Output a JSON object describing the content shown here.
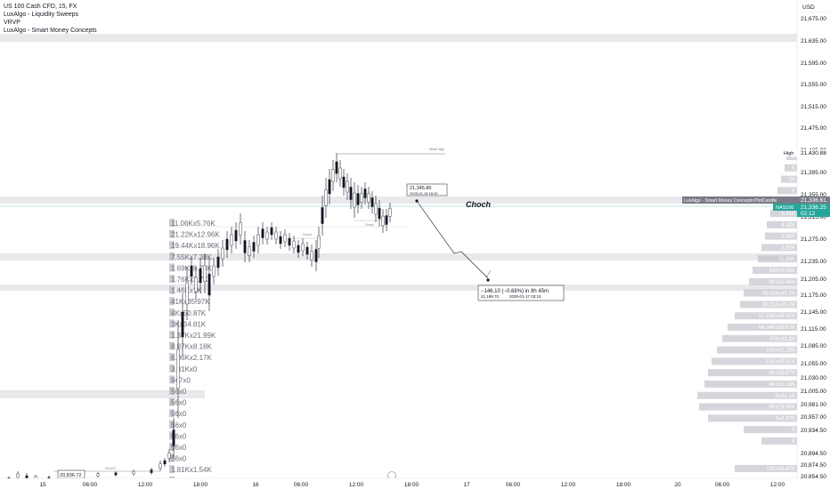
{
  "legend": {
    "symbol": "US 100 Cash CFD, 15, FX",
    "indicators": [
      "LuxAlgo - Liquidity Sweeps",
      "VRVP",
      "LuxAlgo - Smart Money Concepts"
    ]
  },
  "currency": "USD",
  "colors": {
    "bull": "#131722",
    "bear": "#131722",
    "accent": "#26a69a",
    "zone": "#e9e9ec",
    "volume": "#b2b5be"
  },
  "chart_data": {
    "type": "candlestick",
    "y_axis": {
      "ticks": [
        20854.5,
        20874.5,
        20894.5,
        20934.5,
        20957.0,
        20981.0,
        21005.0,
        21030.0,
        21055.0,
        21085.0,
        21115.0,
        21145.0,
        21175.0,
        21205.0,
        21235.0,
        21275.0,
        21315.0,
        21355.0,
        21395.0,
        21435.0,
        21475.0,
        21515.0,
        21555.0,
        21595.0,
        21635.0,
        21675.0
      ]
    },
    "x_axis": {
      "ticks": [
        "15",
        "06:00",
        "12:00",
        "18:00",
        "16",
        "06:00",
        "12:00",
        "18:00",
        "17",
        "06:00",
        "12:00",
        "18:00",
        "20",
        "06:00",
        "12:00"
      ]
    },
    "price_tags": [
      {
        "label": "High",
        "value": "21,430.88"
      },
      {
        "label": "LuxAlgo - Smart Money Concepts:PlotCandle",
        "value": "21,336.61"
      },
      {
        "label": "NAS100",
        "value": "21,336.25"
      },
      {
        "label": "",
        "value": "02:12"
      }
    ],
    "annotations": {
      "choch_label": "Choch",
      "point_callout": {
        "price": "21,345.80",
        "time": "2025-01-16 18:30"
      },
      "projection_callout": {
        "change": "−146.10 (−0.68%) in 8h 45m",
        "price": "21,199.70",
        "time": "2025-01-17 03:15"
      },
      "bottom_price": "20,836.72",
      "small_labels": [
        "Weak High",
        "Choch",
        "Choch",
        "ChoCH"
      ]
    },
    "left_volume_labels": [
      "11.06Kx5.76K",
      "21.22Kx12.96K",
      "19.44Kx18.96K",
      "7.55Kx7.38K",
      "1.69Kx8.73K",
      "1.76Kx1.7K",
      "1.46Kx1K",
      "41Kx35.97K",
      "4Kx50.87K",
      "3Kx34.81K",
      "1.37Kx21.99K",
      "8.87Kx8.18K",
      "6.06Kx2.17K",
      "3.31Kx0",
      "947x0",
      "56x0",
      "56x0",
      "56x0",
      "56x0",
      "56x0",
      "56x0",
      "56x0",
      "1.81Kx1.54K",
      "1.83Kx6.99K"
    ],
    "right_volume_labels": [
      "K",
      "K",
      "2K",
      "K",
      "31K",
      "8.41K",
      "4.82K",
      "2.34K",
      "3.92K",
      "21.98K",
      "83Kx5.06K",
      "9Kx26.46K",
      "48.01Kx40.7K",
      "36.21Kx46.2K",
      "57.33Kx48.42K",
      "64.54Kx39.67K",
      "47Kx32.6K",
      "33Kx32.15K",
      "61Kx25.61K",
      "9Kx29.87K",
      "4Kx31.19K",
      "Kx31.1K",
      "9Kx24.94K",
      "5x6.97K",
      "K",
      "K",
      "71Kx33.87K"
    ]
  }
}
